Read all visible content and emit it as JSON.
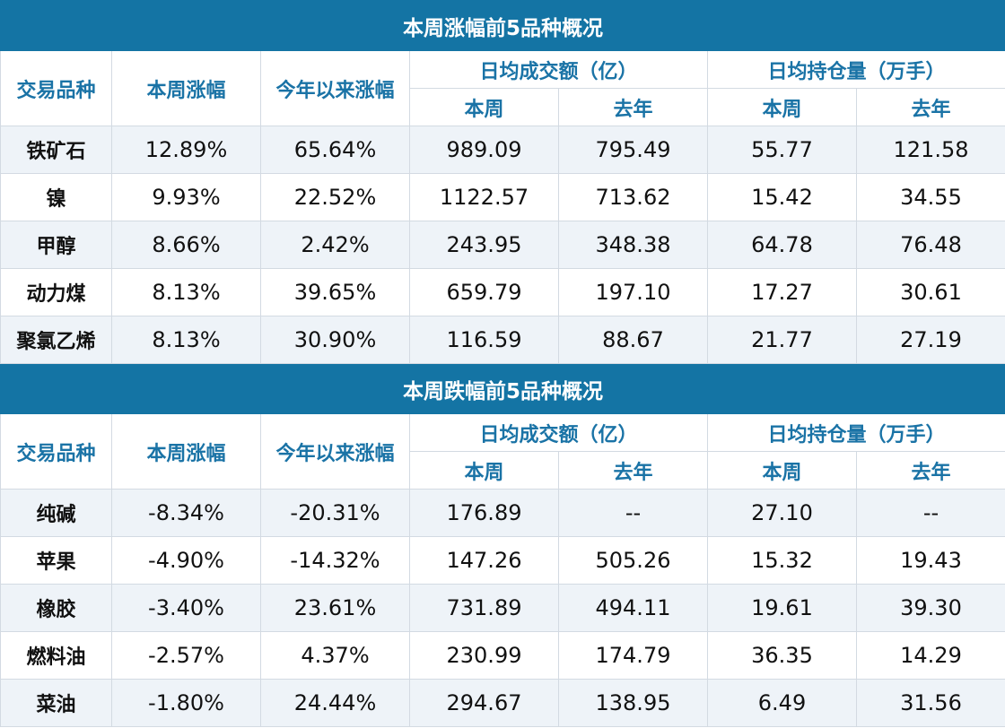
{
  "headers": {
    "variety": "交易品种",
    "weekly_change": "本周涨幅",
    "ytd_change": "今年以来涨幅",
    "avg_volume": "日均成交额（亿）",
    "avg_oi": "日均持仓量（万手）",
    "this_week": "本周",
    "last_year": "去年"
  },
  "sections": [
    {
      "title": "本周涨幅前5品种概况",
      "rows": [
        {
          "name": "铁矿石",
          "weekly": "12.89%",
          "ytd": "65.64%",
          "vol_week": "989.09",
          "vol_year": "795.49",
          "oi_week": "55.77",
          "oi_year": "121.58"
        },
        {
          "name": "镍",
          "weekly": "9.93%",
          "ytd": "22.52%",
          "vol_week": "1122.57",
          "vol_year": "713.62",
          "oi_week": "15.42",
          "oi_year": "34.55"
        },
        {
          "name": "甲醇",
          "weekly": "8.66%",
          "ytd": "2.42%",
          "vol_week": "243.95",
          "vol_year": "348.38",
          "oi_week": "64.78",
          "oi_year": "76.48"
        },
        {
          "name": "动力煤",
          "weekly": "8.13%",
          "ytd": "39.65%",
          "vol_week": "659.79",
          "vol_year": "197.10",
          "oi_week": "17.27",
          "oi_year": "30.61"
        },
        {
          "name": "聚氯乙烯",
          "weekly": "8.13%",
          "ytd": "30.90%",
          "vol_week": "116.59",
          "vol_year": "88.67",
          "oi_week": "21.77",
          "oi_year": "27.19"
        }
      ]
    },
    {
      "title": "本周跌幅前5品种概况",
      "rows": [
        {
          "name": "纯碱",
          "weekly": "-8.34%",
          "ytd": "-20.31%",
          "vol_week": "176.89",
          "vol_year": "--",
          "oi_week": "27.10",
          "oi_year": "--"
        },
        {
          "name": "苹果",
          "weekly": "-4.90%",
          "ytd": "-14.32%",
          "vol_week": "147.26",
          "vol_year": "505.26",
          "oi_week": "15.32",
          "oi_year": "19.43"
        },
        {
          "name": "橡胶",
          "weekly": "-3.40%",
          "ytd": "23.61%",
          "vol_week": "731.89",
          "vol_year": "494.11",
          "oi_week": "19.61",
          "oi_year": "39.30"
        },
        {
          "name": "燃料油",
          "weekly": "-2.57%",
          "ytd": "4.37%",
          "vol_week": "230.99",
          "vol_year": "174.79",
          "oi_week": "36.35",
          "oi_year": "14.29"
        },
        {
          "name": "菜油",
          "weekly": "-1.80%",
          "ytd": "24.44%",
          "vol_week": "294.67",
          "vol_year": "138.95",
          "oi_week": "6.49",
          "oi_year": "31.56"
        }
      ]
    }
  ]
}
